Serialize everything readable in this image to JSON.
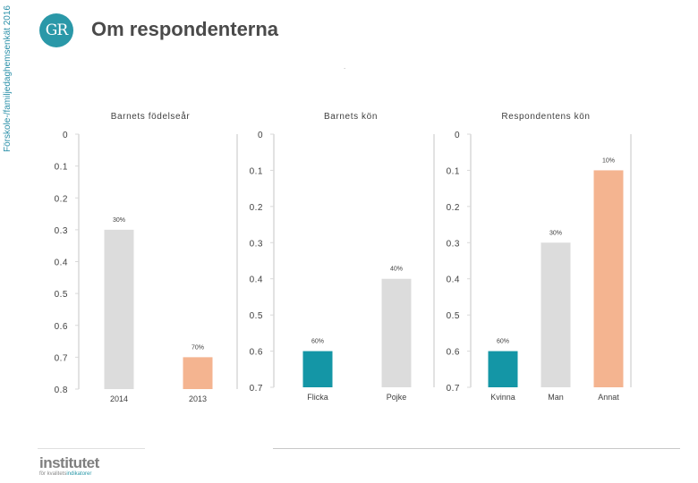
{
  "header": {
    "side_label": "Förskole-/familjedaghemsenkät 2016",
    "logo_text": "GR",
    "title": "Om respondenterna",
    "dot": "."
  },
  "footer": {
    "logo": "institutet",
    "sub_a": "för kvalitets",
    "sub_b": "indikatorer"
  },
  "colors": {
    "gray": "#dcdcdc",
    "orange": "#f4b490",
    "teal": "#1496a6",
    "axis": "#d9d9d9"
  },
  "chart_data": [
    {
      "type": "bar",
      "title": "Barnets födelseår",
      "ylim": [
        0,
        0.8
      ],
      "yticks": [
        "0",
        "0.1",
        "0.2",
        "0.3",
        "0.4",
        "0.5",
        "0.6",
        "0.7",
        "0.8"
      ],
      "categories": [
        "2014",
        "2013"
      ],
      "values": [
        0.3,
        0.7
      ],
      "labels": [
        "30%",
        "70%"
      ],
      "colors": [
        "gray",
        "orange"
      ]
    },
    {
      "type": "bar",
      "title": "Barnets kön",
      "ylim": [
        0,
        0.7
      ],
      "yticks": [
        "0",
        "0.1",
        "0.2",
        "0.3",
        "0.4",
        "0.5",
        "0.6",
        "0.7"
      ],
      "categories": [
        "Flicka",
        "Pojke"
      ],
      "values": [
        0.6,
        0.4
      ],
      "labels": [
        "60%",
        "40%"
      ],
      "colors": [
        "teal",
        "gray"
      ]
    },
    {
      "type": "bar",
      "title": "Respondentens kön",
      "ylim": [
        0,
        0.7
      ],
      "yticks": [
        "0",
        "0.1",
        "0.2",
        "0.3",
        "0.4",
        "0.5",
        "0.6",
        "0.7"
      ],
      "categories": [
        "Kvinna",
        "Man",
        "Annat"
      ],
      "values": [
        0.6,
        0.3,
        0.1
      ],
      "labels": [
        "60%",
        "30%",
        "10%"
      ],
      "colors": [
        "teal",
        "gray",
        "orange"
      ]
    }
  ]
}
